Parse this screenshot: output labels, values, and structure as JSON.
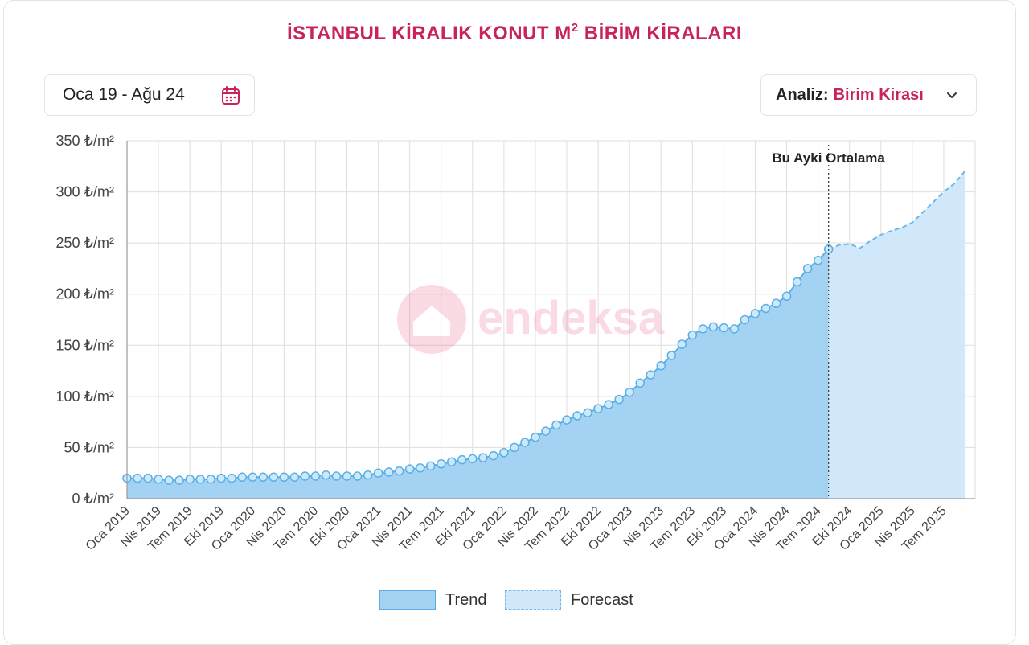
{
  "header": {
    "title": "İSTANBUL KİRALIK KONUT M",
    "title_sup": "2",
    "title_suffix": " BİRİM KİRALARI"
  },
  "controls": {
    "date_range": "Oca 19 - Ağu 24",
    "analiz_label": "Analiz:",
    "analiz_value": "Birim Kirası"
  },
  "watermark": "endeksa",
  "colors": {
    "accent": "#c8245a",
    "trend_fill": "#a4d2f3",
    "trend_line": "#5ab0e6",
    "forecast_fill": "#d0e8fa"
  },
  "chart_data": {
    "type": "area",
    "x_tick_labels": [
      "Oca 2019",
      "Nis 2019",
      "Tem 2019",
      "Eki 2019",
      "Oca 2020",
      "Nis 2020",
      "Tem 2020",
      "Eki 2020",
      "Oca 2021",
      "Nis 2021",
      "Tem 2021",
      "Eki 2021",
      "Oca 2022",
      "Nis 2022",
      "Tem 2022",
      "Eki 2022",
      "Oca 2023",
      "Nis 2023",
      "Tem 2023",
      "Eki 2023",
      "Oca 2024",
      "Nis 2024",
      "Tem 2024",
      "Eki 2024",
      "Oca 2025",
      "Nis 2025",
      "Tem 2025"
    ],
    "y_tick_labels": [
      "0 ₺/m²",
      "50 ₺/m²",
      "100 ₺/m²",
      "150 ₺/m²",
      "200 ₺/m²",
      "250 ₺/m²",
      "300 ₺/m²",
      "350 ₺/m²"
    ],
    "ylim": [
      0,
      350
    ],
    "grid": true,
    "legend_position": "bottom",
    "annotation": "Bu Ayki Ortalama",
    "series": [
      {
        "name": "Trend",
        "start": "2019-01",
        "values": [
          20,
          20,
          20,
          19,
          18,
          18,
          19,
          19,
          19,
          20,
          20,
          21,
          21,
          21,
          21,
          21,
          21,
          22,
          22,
          23,
          22,
          22,
          22,
          23,
          25,
          26,
          27,
          29,
          30,
          32,
          34,
          36,
          38,
          39,
          40,
          42,
          45,
          50,
          55,
          60,
          66,
          72,
          77,
          81,
          84,
          88,
          92,
          97,
          104,
          113,
          121,
          130,
          140,
          151,
          160,
          166,
          168,
          167,
          166,
          175,
          181,
          186,
          191,
          198,
          212,
          225,
          233,
          244
        ]
      },
      {
        "name": "Forecast",
        "start": "2024-08",
        "values": [
          244,
          248,
          249,
          245,
          252,
          258,
          262,
          265,
          270,
          280,
          290,
          300,
          308,
          320
        ]
      }
    ]
  }
}
